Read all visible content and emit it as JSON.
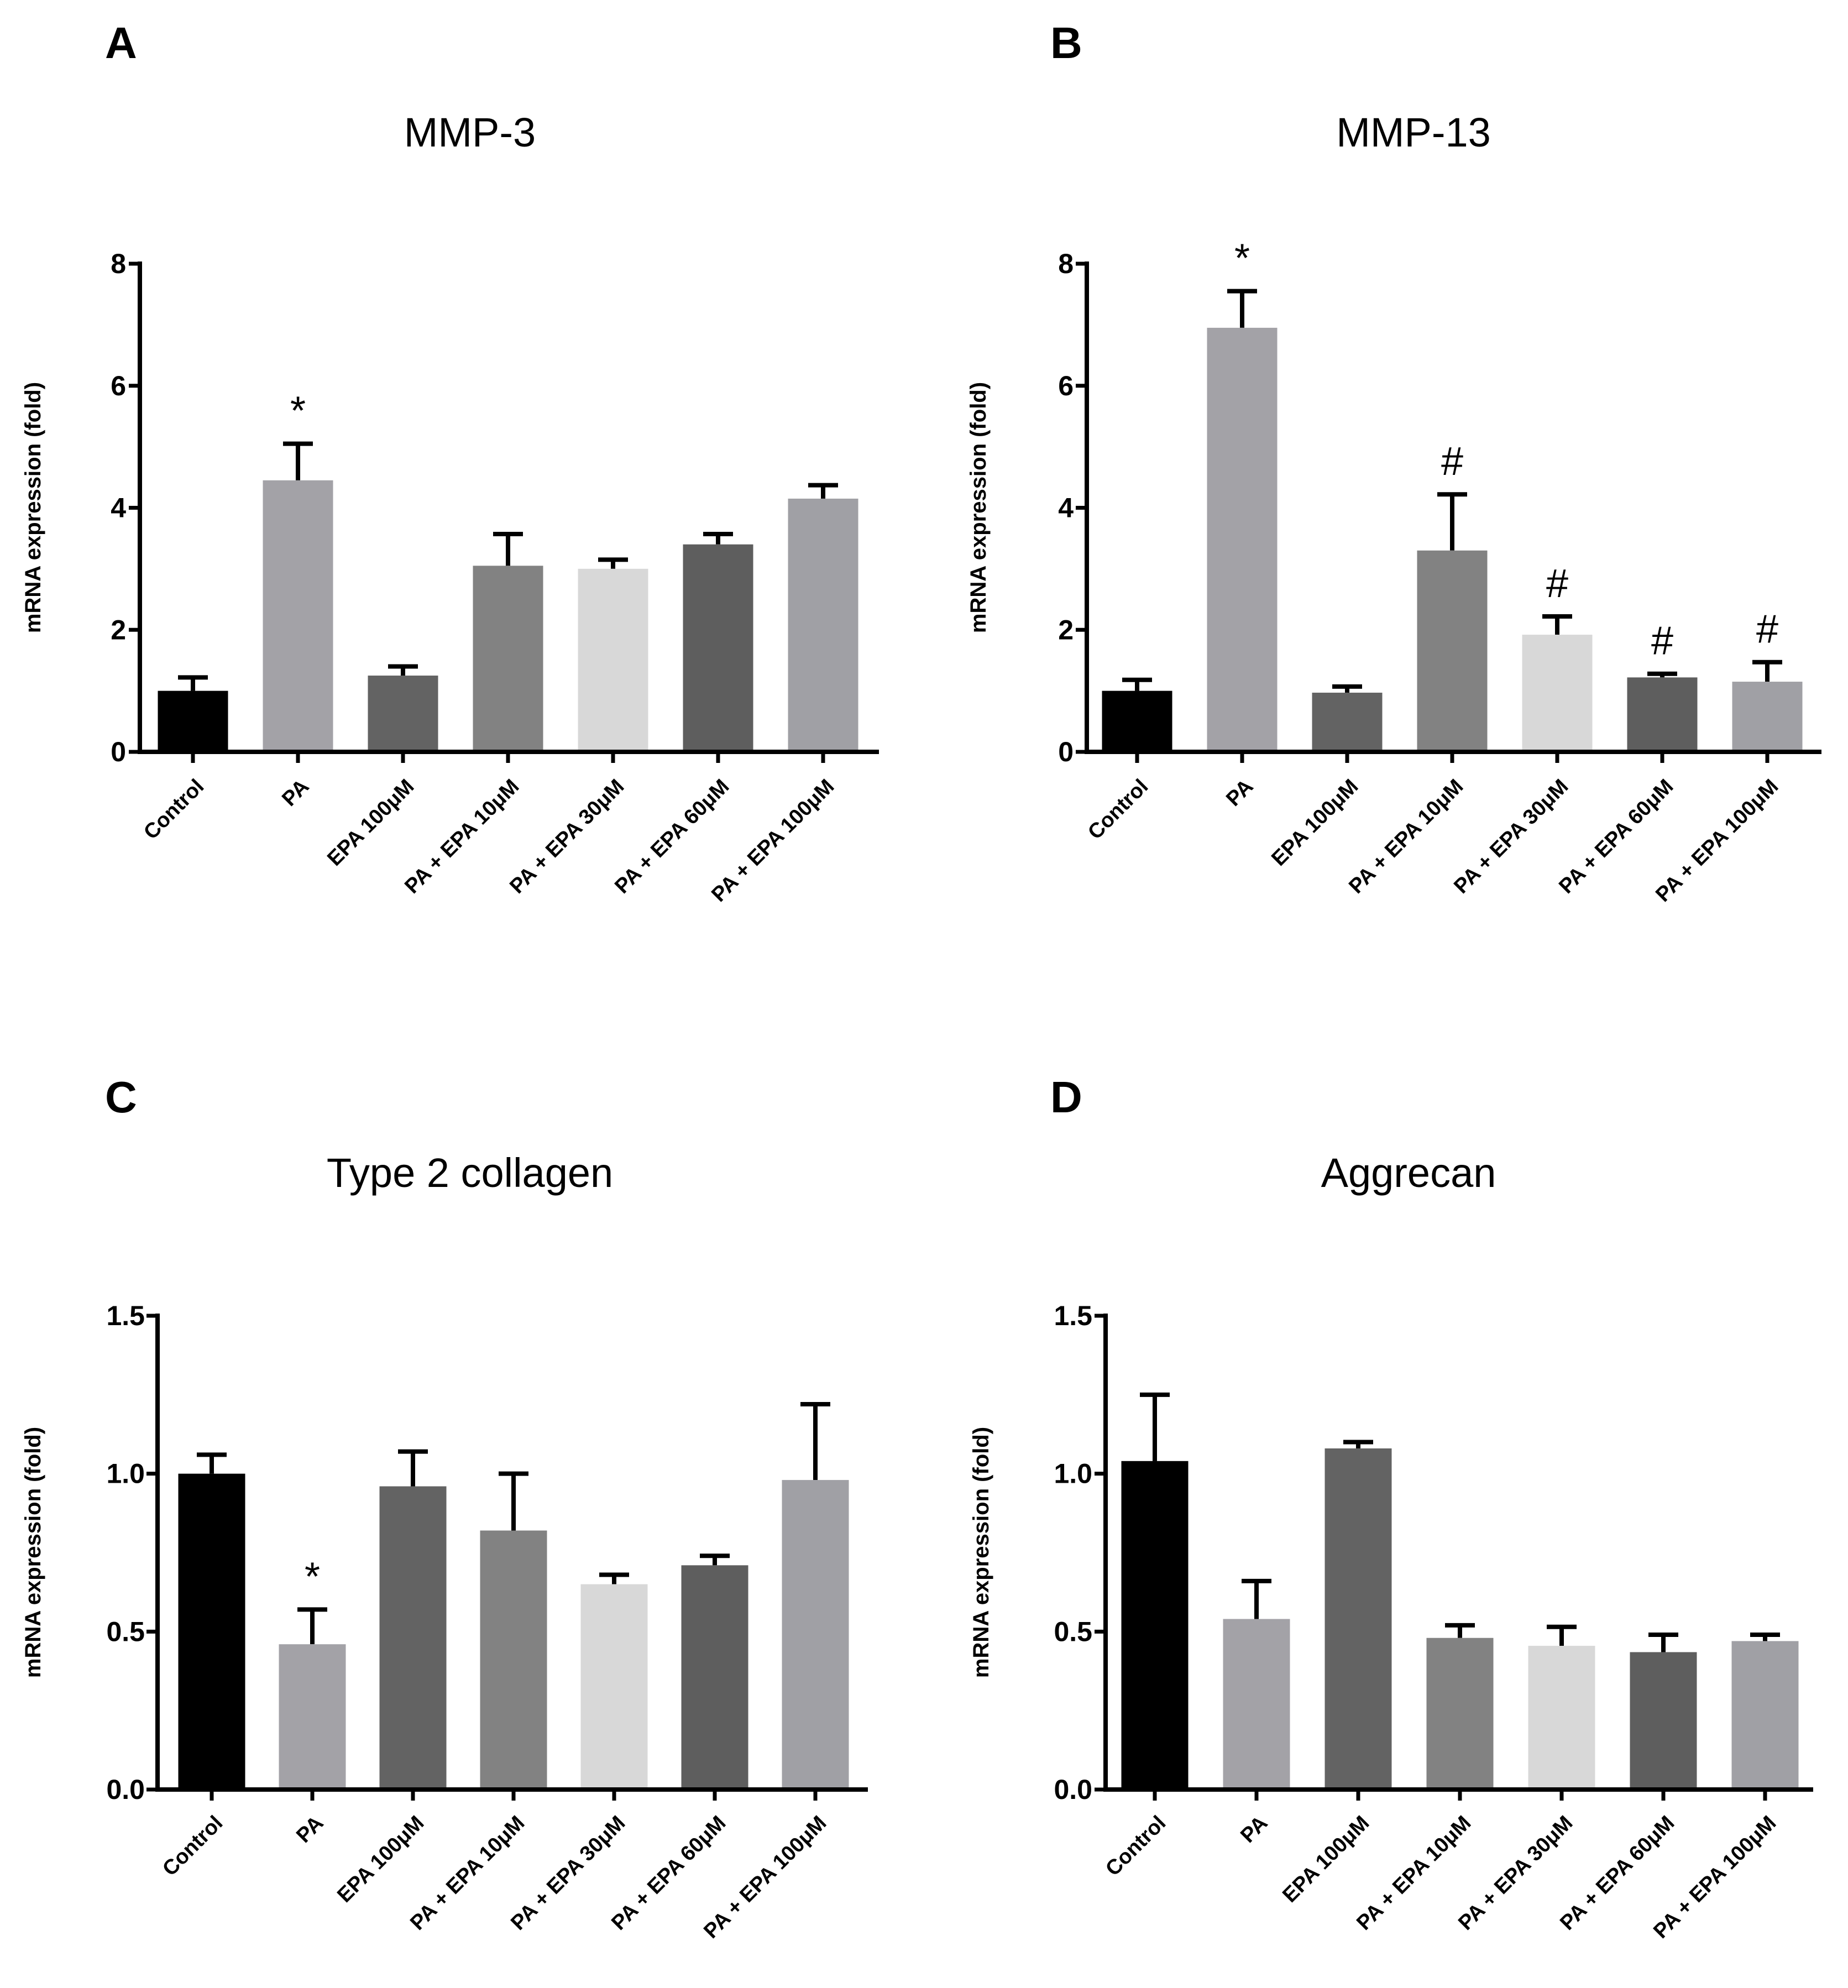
{
  "chart_data": [
    {
      "panel": "A",
      "type": "bar",
      "title": "MMP-3",
      "xlabel": "",
      "ylabel": "mRNA expression (fold)",
      "ylim": [
        0,
        8
      ],
      "yticks": [
        "0",
        "2",
        "4",
        "6",
        "8"
      ],
      "categories": [
        "Control",
        "PA",
        "EPA 100μM",
        "PA + EPA 10μM",
        "PA + EPA 30μM",
        "PA + EPA 60μM",
        "PA + EPA 100μM"
      ],
      "values": [
        1.0,
        4.45,
        1.25,
        3.05,
        3.0,
        3.4,
        4.15
      ],
      "errors": [
        0.22,
        0.6,
        0.15,
        0.52,
        0.15,
        0.17,
        0.22
      ],
      "colors": [
        "#000000",
        "#a3a2a7",
        "#636363",
        "#828282",
        "#d8d8d8",
        "#5e5e5e",
        "#a0a0a5"
      ],
      "annotations": [
        "",
        "*",
        "",
        "",
        "",
        "",
        ""
      ]
    },
    {
      "panel": "B",
      "type": "bar",
      "title": "MMP-13",
      "xlabel": "",
      "ylabel": "mRNA expression (fold)",
      "ylim": [
        0,
        8
      ],
      "yticks": [
        "0",
        "2",
        "4",
        "6",
        "8"
      ],
      "categories": [
        "Control",
        "PA",
        "EPA 100μM",
        "PA + EPA 10μM",
        "PA + EPA 30μM",
        "PA + EPA 60μM",
        "PA + EPA 100μM"
      ],
      "values": [
        1.0,
        6.95,
        0.97,
        3.3,
        1.92,
        1.22,
        1.15
      ],
      "errors": [
        0.18,
        0.6,
        0.1,
        0.92,
        0.3,
        0.06,
        0.32
      ],
      "colors": [
        "#000000",
        "#a3a2a7",
        "#636363",
        "#828282",
        "#d8d8d8",
        "#5e5e5e",
        "#a0a0a5"
      ],
      "annotations": [
        "",
        "*",
        "",
        "#",
        "#",
        "#",
        "#"
      ]
    },
    {
      "panel": "C",
      "type": "bar",
      "title": "Type 2 collagen",
      "xlabel": "",
      "ylabel": "mRNA expression (fold)",
      "ylim": [
        0,
        1.5
      ],
      "yticks": [
        "0.0",
        "0.5",
        "1.0",
        "1.5"
      ],
      "categories": [
        "Control",
        "PA",
        "EPA 100μM",
        "PA + EPA 10μM",
        "PA + EPA 30μM",
        "PA + EPA 60μM",
        "PA + EPA 100μM"
      ],
      "values": [
        1.0,
        0.46,
        0.96,
        0.82,
        0.65,
        0.71,
        0.98
      ],
      "errors": [
        0.06,
        0.11,
        0.11,
        0.18,
        0.03,
        0.03,
        0.24
      ],
      "colors": [
        "#000000",
        "#a3a2a7",
        "#636363",
        "#828282",
        "#d8d8d8",
        "#5e5e5e",
        "#a0a0a5"
      ],
      "annotations": [
        "",
        "*",
        "",
        "",
        "",
        "",
        ""
      ]
    },
    {
      "panel": "D",
      "type": "bar",
      "title": "Aggrecan",
      "xlabel": "",
      "ylabel": "mRNA expression (fold)",
      "ylim": [
        0,
        1.5
      ],
      "yticks": [
        "0.0",
        "0.5",
        "1.0",
        "1.5"
      ],
      "categories": [
        "Control",
        "PA",
        "EPA 100μM",
        "PA + EPA 10μM",
        "PA + EPA 30μM",
        "PA + EPA 60μM",
        "PA + EPA 100μM"
      ],
      "values": [
        1.04,
        0.54,
        1.08,
        0.48,
        0.455,
        0.435,
        0.47
      ],
      "errors": [
        0.21,
        0.12,
        0.02,
        0.04,
        0.06,
        0.055,
        0.02
      ],
      "colors": [
        "#000000",
        "#a3a2a7",
        "#636363",
        "#828282",
        "#d8d8d8",
        "#5e5e5e",
        "#a0a0a5"
      ],
      "annotations": [
        "",
        "",
        "",
        "",
        "",
        "",
        ""
      ]
    }
  ]
}
